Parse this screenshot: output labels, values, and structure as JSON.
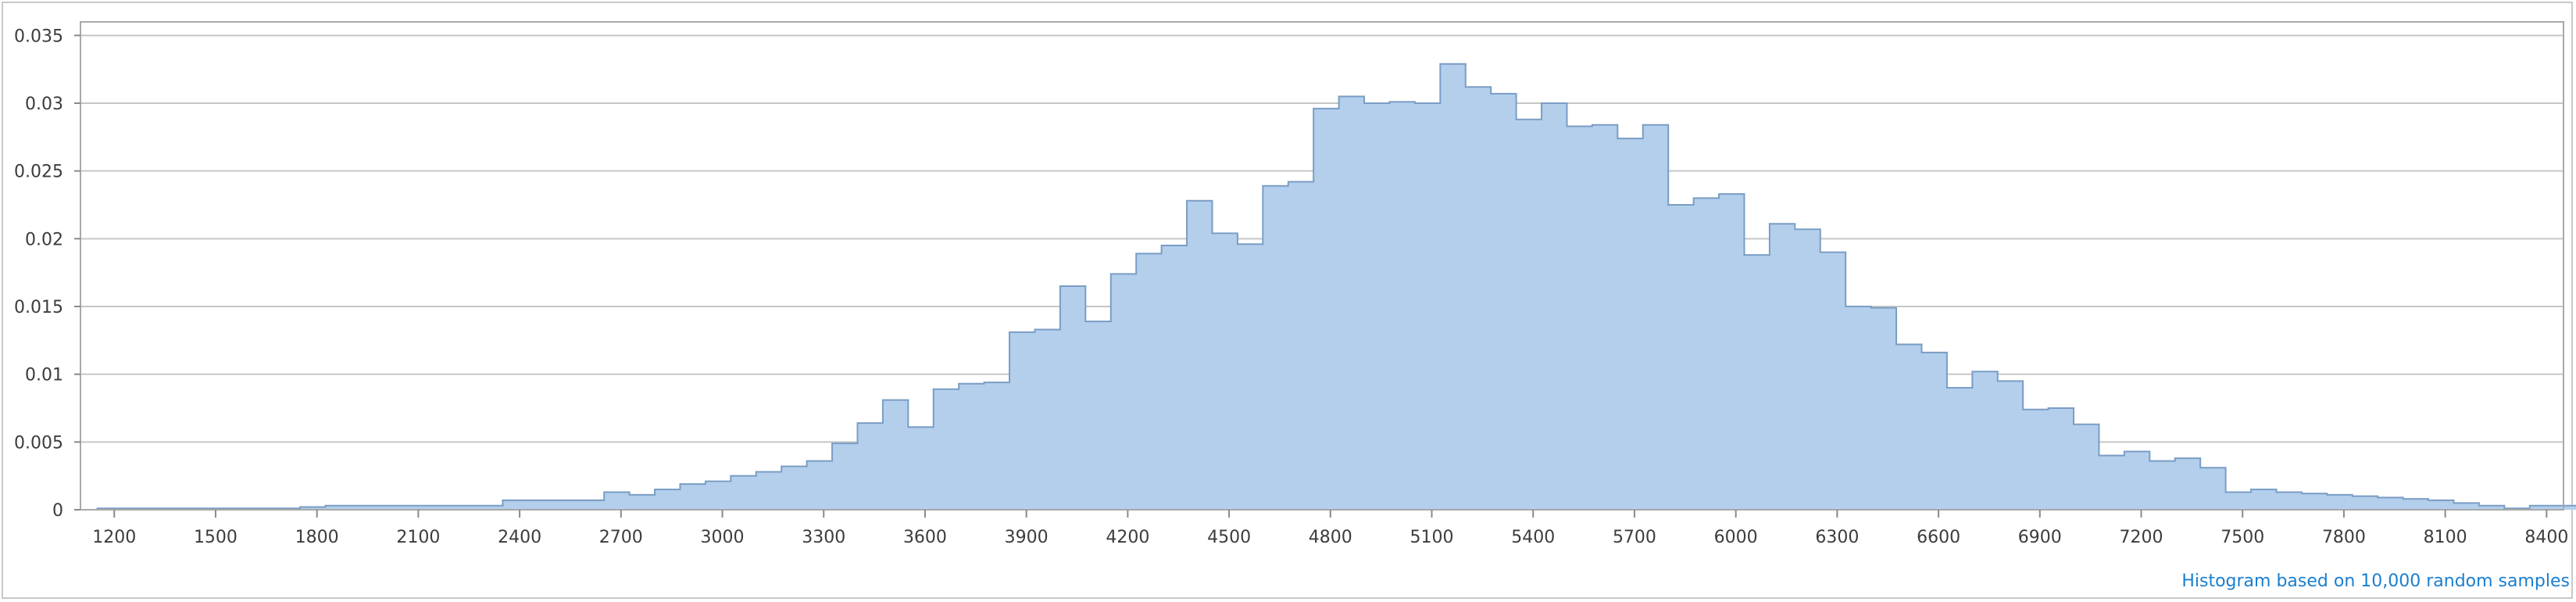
{
  "chart_data": {
    "type": "area",
    "title": "",
    "xlabel": "",
    "ylabel": "",
    "xlim": [
      1100,
      8450
    ],
    "ylim": [
      0,
      0.036
    ],
    "bin_start": 1150,
    "bin_width": 75,
    "x_ticks": [
      1200,
      1500,
      1800,
      2100,
      2400,
      2700,
      3000,
      3300,
      3600,
      3900,
      4200,
      4500,
      4800,
      5100,
      5400,
      5700,
      6000,
      6300,
      6600,
      6900,
      7200,
      7500,
      7800,
      8100,
      8400
    ],
    "y_ticks": [
      0,
      0.005,
      0.01,
      0.015,
      0.02,
      0.025,
      0.03,
      0.035
    ],
    "y_tick_labels": [
      "0",
      "0.005",
      "0.01",
      "0.015",
      "0.02",
      "0.025",
      "0.03",
      "0.035"
    ],
    "grid": "horizontal",
    "fill_color": "#b3cfec",
    "line_color": "#7a9dc4",
    "values": [
      0.0001,
      0.0001,
      0.0001,
      0.0001,
      0.0001,
      0.0001,
      0.0001,
      0.0001,
      0.0002,
      0.0003,
      0.0003,
      0.0003,
      0.0003,
      0.0003,
      0.0003,
      0.0003,
      0.0007,
      0.0007,
      0.0007,
      0.0007,
      0.0013,
      0.0011,
      0.0015,
      0.0019,
      0.0021,
      0.0025,
      0.0028,
      0.0032,
      0.0036,
      0.0049,
      0.0064,
      0.0081,
      0.0061,
      0.0089,
      0.0093,
      0.0094,
      0.0131,
      0.0133,
      0.0165,
      0.0139,
      0.0174,
      0.0189,
      0.0195,
      0.0228,
      0.0204,
      0.0196,
      0.0239,
      0.0242,
      0.0296,
      0.0305,
      0.03,
      0.0301,
      0.03,
      0.0329,
      0.0312,
      0.0307,
      0.0288,
      0.03,
      0.0283,
      0.0284,
      0.0274,
      0.0284,
      0.0225,
      0.023,
      0.0233,
      0.0188,
      0.0211,
      0.0207,
      0.019,
      0.015,
      0.0149,
      0.0122,
      0.0116,
      0.009,
      0.0102,
      0.0095,
      0.0074,
      0.0075,
      0.0063,
      0.004,
      0.0043,
      0.0036,
      0.0038,
      0.0031,
      0.0013,
      0.0015,
      0.0013,
      0.0012,
      0.0011,
      0.001,
      0.0009,
      0.0008,
      0.0007,
      0.0005,
      0.0003,
      0.0001,
      0.0003,
      0.0003,
      0.0001,
      0.0001,
      0.0001
    ]
  },
  "footer": {
    "note": "Histogram based on 10,000 random samples"
  }
}
